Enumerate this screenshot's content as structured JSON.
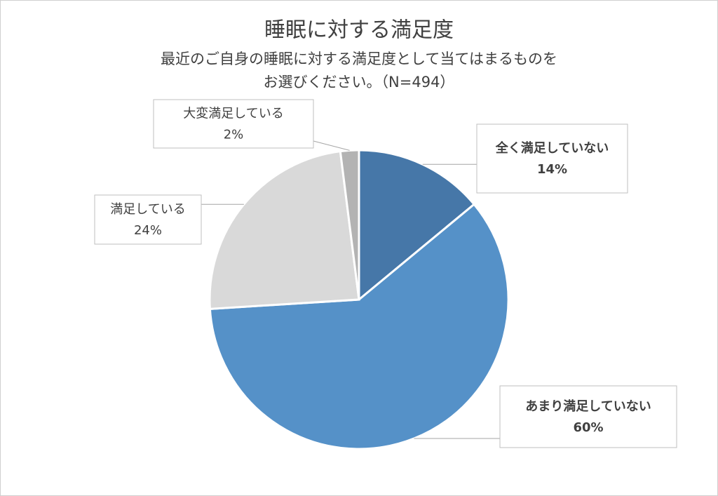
{
  "chart_data": {
    "type": "pie",
    "title": "睡眠に対する満足度",
    "subtitle": [
      "最近のご自身の睡眠に対する満足度として当てはまるものを",
      "お選びください。（N=494）"
    ],
    "categories": [
      "全く満足していない",
      "あまり満足していない",
      "満足している",
      "大変満足している"
    ],
    "values": [
      14,
      60,
      24,
      2
    ],
    "value_labels": [
      "14%",
      "60%",
      "24%",
      "2%"
    ],
    "colors": [
      "#4677a8",
      "#5591c8",
      "#d9d9d9",
      "#b3b3b3"
    ]
  }
}
